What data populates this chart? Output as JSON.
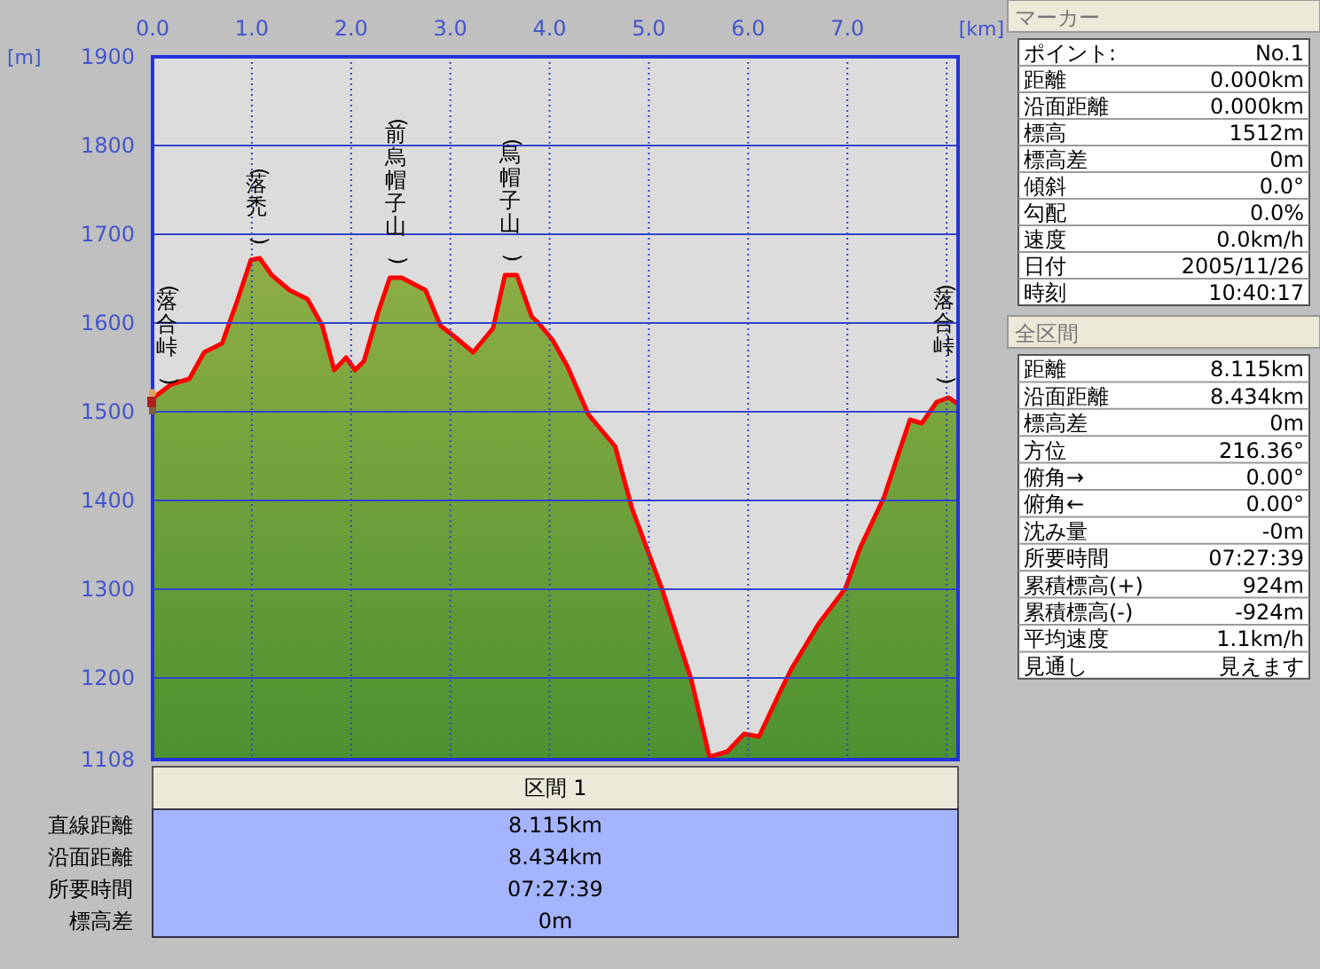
{
  "chart_data": [
    {
      "type": "area",
      "xlabel": "[km]",
      "ylabel": "[m]",
      "xlim": [
        0,
        8.115
      ],
      "ylim": [
        1108,
        1900
      ],
      "xticks": [
        {
          "value": 0,
          "label": "0.0"
        },
        {
          "value": 1,
          "label": "1.0"
        },
        {
          "value": 2,
          "label": "2.0"
        },
        {
          "value": 3,
          "label": "3.0"
        },
        {
          "value": 4,
          "label": "4.0"
        },
        {
          "value": 5,
          "label": "5.0"
        },
        {
          "value": 6,
          "label": "6.0"
        },
        {
          "value": 7,
          "label": "7.0"
        },
        {
          "value": 8,
          "label": null
        }
      ],
      "yticks": [
        1108,
        1200,
        1300,
        1400,
        1500,
        1600,
        1700,
        1800,
        1900
      ],
      "grid": true,
      "x": [
        0,
        0.19,
        0.37,
        0.52,
        0.7,
        0.85,
        0.99,
        1.08,
        1.2,
        1.38,
        1.56,
        1.71,
        1.83,
        1.95,
        2.04,
        2.13,
        2.27,
        2.39,
        2.51,
        2.75,
        2.9,
        3.05,
        3.23,
        3.43,
        3.55,
        3.67,
        3.82,
        3.88,
        4.03,
        4.18,
        4.39,
        4.66,
        4.83,
        5.13,
        5.43,
        5.61,
        5.79,
        5.96,
        6.11,
        6.32,
        6.44,
        6.71,
        6.98,
        7.13,
        7.37,
        7.51,
        7.63,
        7.75,
        7.9,
        8.02,
        8.11
      ],
      "series": [
        {
          "color": "#ff0000",
          "values": [
            1515,
            1531,
            1537,
            1567,
            1577,
            1624,
            1671,
            1673,
            1654,
            1637,
            1627,
            1597,
            1547,
            1561,
            1547,
            1557,
            1611,
            1651,
            1651,
            1637,
            1597,
            1584,
            1567,
            1594,
            1654,
            1654,
            1607,
            1601,
            1581,
            1551,
            1497,
            1461,
            1391,
            1301,
            1197,
            1111,
            1117,
            1137,
            1134,
            1184,
            1211,
            1261,
            1301,
            1347,
            1404,
            1451,
            1491,
            1487,
            1511,
            1516,
            1509
          ]
        }
      ],
      "annotations": [
        {
          "text": "(落合峠)",
          "x": 0,
          "y": 1515
        },
        {
          "text": "(落禿)",
          "x": 1.05,
          "y": 1673
        },
        {
          "text": "(前烏帽子山)",
          "x": 2.45,
          "y": 1651
        },
        {
          "text": "(烏帽子山)",
          "x": 3.6,
          "y": 1654
        },
        {
          "text": "(落合峠)",
          "x": 8.02,
          "y": 1516
        }
      ]
    },
    {
      "type": "other",
      "title": "区間 1",
      "annotations": [
        "直線距離",
        "8.115km",
        "沿面距離",
        "8.434km",
        "所要時間",
        "07:27:39",
        "標高差",
        "0m"
      ]
    },
    {
      "type": "other",
      "title": "マーカー",
      "annotations": [
        "ポイント:",
        "No.1",
        "距離",
        "0.000km",
        "沿面距離",
        "0.000km",
        "標高",
        "1512m",
        "標高差",
        "0m",
        "傾斜",
        "0.0°",
        "勾配",
        "0.0%",
        "速度",
        "0.0km/h",
        "日付",
        "2005/11/26",
        "時刻",
        "10:40:17"
      ]
    },
    {
      "type": "other",
      "title": "全区間",
      "annotations": [
        "距離",
        "8.115km",
        "沿面距離",
        "8.434km",
        "標高差",
        "0m",
        "方位",
        "216.36°",
        "俯角→",
        "0.00°",
        "俯角←",
        "0.00°",
        "沈み量",
        "-0m",
        "所要時間",
        "07:27:39",
        "累積標高(+)",
        "924m",
        "累積標高(-)",
        "-924m",
        "平均速度",
        "1.1km/h",
        "見通し",
        "見えます"
      ]
    }
  ]
}
